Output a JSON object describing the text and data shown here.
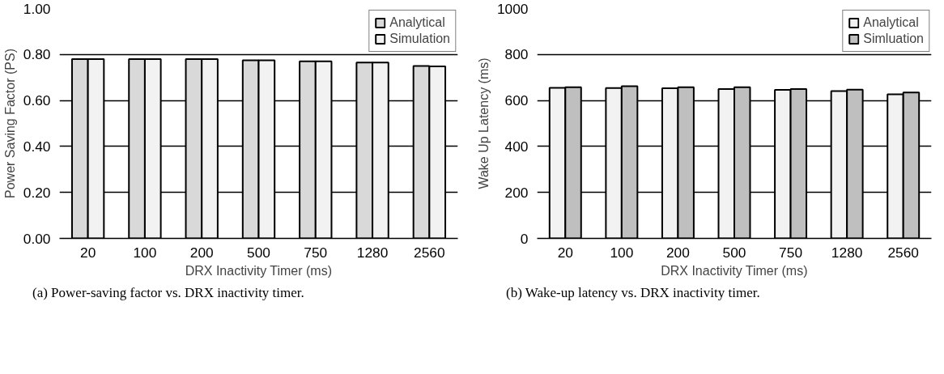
{
  "chart_data": [
    {
      "type": "bar",
      "categories": [
        "20",
        "100",
        "200",
        "500",
        "750",
        "1280",
        "2560"
      ],
      "xlabel": "DRX Inactivity Timer (ms)",
      "ylabel": "Power Saving Factor (PS)",
      "series": [
        {
          "name": "Analytical",
          "color": "#d9d9d9",
          "values": [
            0.78,
            0.78,
            0.78,
            0.775,
            0.77,
            0.765,
            0.75
          ]
        },
        {
          "name": "Simulation",
          "color": "#f2f2f2",
          "values": [
            0.78,
            0.78,
            0.78,
            0.775,
            0.77,
            0.765,
            0.748
          ]
        }
      ],
      "ylim": [
        0,
        1
      ],
      "yticks": [
        {
          "value": 0,
          "label": "0.00"
        },
        {
          "value": 0.2,
          "label": "0.20"
        },
        {
          "value": 0.4,
          "label": "0.40"
        },
        {
          "value": 0.6,
          "label": "0.60"
        },
        {
          "value": 0.8,
          "label": "0.80"
        },
        {
          "value": 1,
          "label": "1.00"
        }
      ],
      "grid": "y",
      "legend": "top right",
      "annotations": [
        "(a) Power-saving factor vs.  DRX inactivity timer."
      ]
    },
    {
      "type": "bar",
      "categories": [
        "20",
        "100",
        "200",
        "500",
        "750",
        "1280",
        "2560"
      ],
      "xlabel": "DRX Inactivity Timer (ms)",
      "ylabel": "Wake Up Latency (ms)",
      "series": [
        {
          "name": "Analytical",
          "color": "#f2f2f2",
          "values": [
            655,
            654,
            653,
            650,
            646,
            641,
            627
          ]
        },
        {
          "name": "Simluation",
          "color": "#bfbfbf",
          "values": [
            658,
            662,
            658,
            658,
            650,
            647,
            635
          ]
        }
      ],
      "ylim": [
        0,
        1000
      ],
      "yticks": [
        0,
        200,
        400,
        600,
        800,
        1000
      ],
      "grid": "y",
      "legend": "top right",
      "annotations": [
        "(b) Wake-up latency vs.  DRX inactivity timer."
      ]
    }
  ]
}
